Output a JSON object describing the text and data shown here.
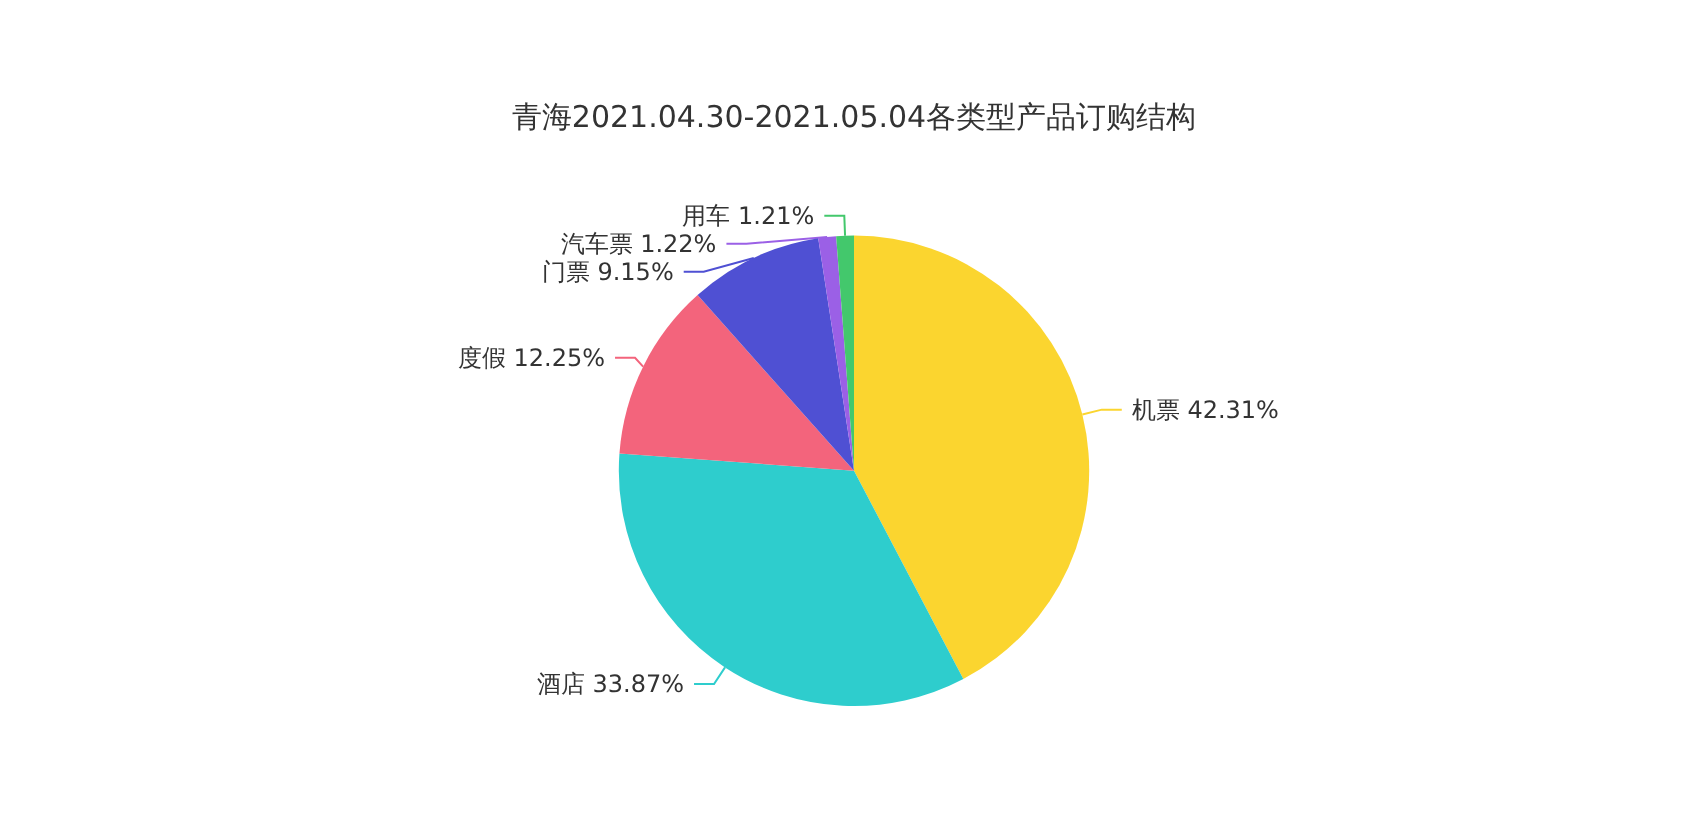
{
  "chart_data": {
    "type": "pie",
    "title": "青海2021.04.30-2021.05.04各类型产品订购结构",
    "categories": [
      "机票",
      "酒店",
      "度假",
      "门票",
      "汽车票",
      "用车"
    ],
    "values": [
      42.31,
      33.87,
      12.25,
      9.15,
      1.22,
      1.21
    ],
    "value_labels": [
      "42.31%",
      "33.87%",
      "12.25%",
      "9.15%",
      "1.22%",
      "1.21%"
    ],
    "colors": [
      "#fbd52f",
      "#2ecdcd",
      "#f3647c",
      "#4f50d3",
      "#9b60e6",
      "#43c86c"
    ],
    "legend": false
  }
}
